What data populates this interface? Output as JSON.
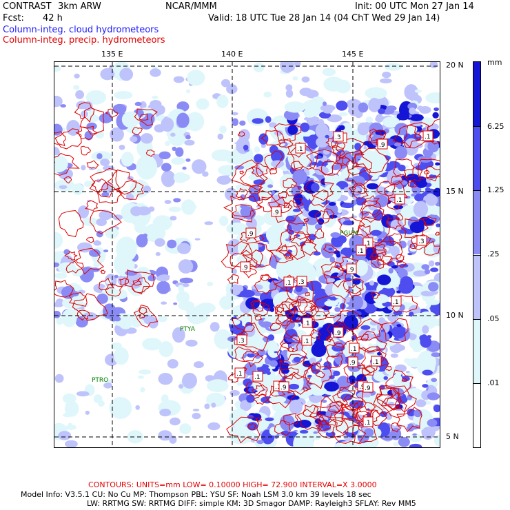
{
  "header": {
    "model": "CONTRAST",
    "grid": "3km ARW",
    "center": "NCAR/MMM",
    "init": "Init: 00 UTC Mon 27 Jan 14",
    "fcst_label": "Fcst:",
    "fcst_value": "42 h",
    "valid": "Valid: 18 UTC Tue 28 Jan 14 (04 ChT Wed 29 Jan 14)",
    "field1": "Column-integ. cloud hydrometeors",
    "field2": "Column-integ. precip. hydrometeors"
  },
  "colors": {
    "field1": "#1a1aff",
    "field2": "#e00000",
    "contour": "#dd0000"
  },
  "map": {
    "lon_labels": [
      "135 E",
      "140 E",
      "145 E"
    ],
    "lat_labels": [
      "20 N",
      "15 N",
      "10 N",
      "5 N"
    ],
    "stations": [
      "PGUM",
      "PTYA",
      "PTRO"
    ],
    "contour_labels": [
      ".1",
      ".1",
      ".1",
      ".1",
      ".9",
      ".9",
      ".9",
      ".3",
      ".3",
      ".9",
      ".1",
      ".9",
      ".1",
      ".1",
      ".3",
      ".9",
      ".1",
      ".9",
      ".1",
      ".1",
      ".3",
      ".1",
      ".1",
      ".9",
      ".1",
      ".1",
      ".9",
      ".9",
      ".1",
      ".1"
    ]
  },
  "legend": {
    "unit": "mm",
    "labels": [
      "6.25",
      "1.25",
      ".25",
      ".05",
      ".01"
    ],
    "colors": [
      "#1515d6",
      "#4d4df0",
      "#8b8bf5",
      "#bfc3fb",
      "#dff7fb",
      "#ffffff"
    ]
  },
  "footer": {
    "contours": "CONTOURS:  UNITS=mm  LOW= 0.10000      HIGH= 72.900      INTERVAL=X  3.0000",
    "line1": "Model Info: V3.5.1     CU: No Cu      MP: Thompson     PBL: YSU      SF: Noah LSM      3.0 km   39 levels    18 sec",
    "line2": "LW: RRTMG    SW: RRTMG   DIFF: simple KM: 3D Smagor DAMP: Rayleigh3  SFLAY: Rev MM5"
  }
}
